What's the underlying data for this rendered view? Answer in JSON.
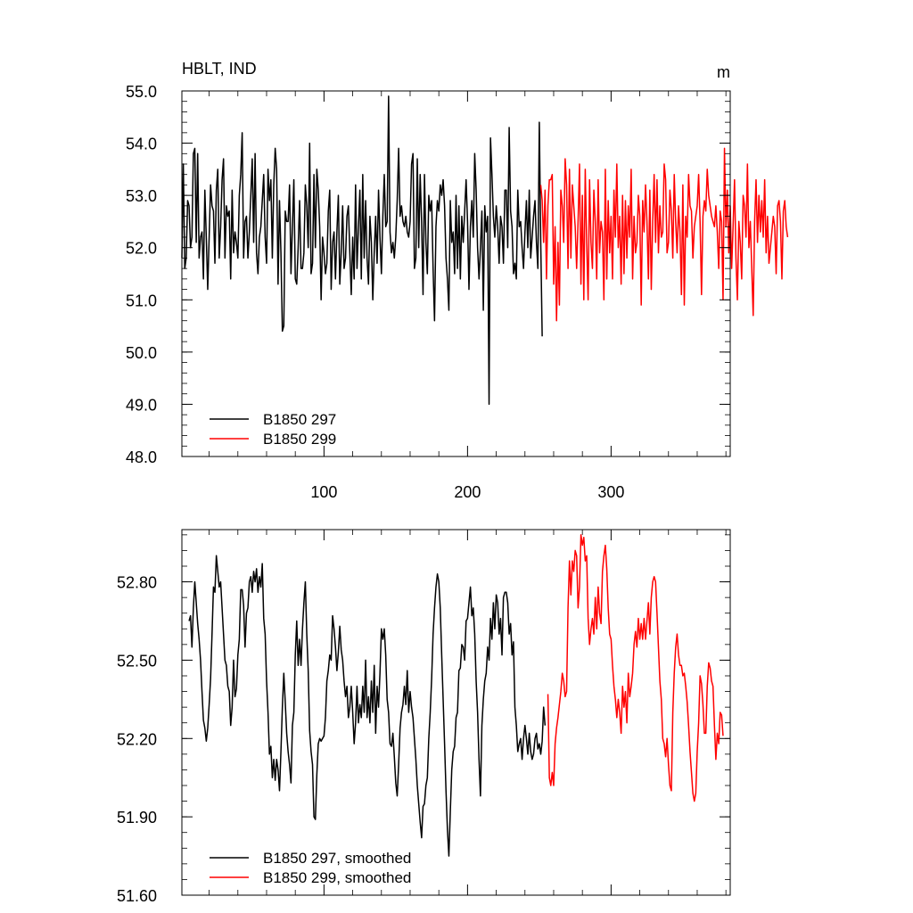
{
  "chart_data": [
    {
      "type": "line",
      "title": "HBLT, IND",
      "units": "m",
      "xlabel": "",
      "ylabel": "",
      "xlim": [
        1,
        383
      ],
      "ylim": [
        48.0,
        55.0
      ],
      "x_ticks": [
        100,
        200,
        300
      ],
      "x_tick_labels": [
        "100",
        "200",
        "300"
      ],
      "y_ticks": [
        48.0,
        49.0,
        50.0,
        51.0,
        52.0,
        53.0,
        54.0,
        55.0
      ],
      "y_tick_labels": [
        "48.0",
        "49.0",
        "50.0",
        "51.0",
        "52.0",
        "53.0",
        "54.0",
        "55.0"
      ],
      "grid": false,
      "legend_position": "bottom-left",
      "series": [
        {
          "name": "B1850 297",
          "color": "#000000",
          "x_start": 1,
          "values": [
            51.8,
            53.6,
            51.6,
            51.8,
            52.9,
            52.8,
            52.0,
            52.2,
            53.8,
            53.9,
            52.1,
            53.8,
            51.8,
            52.2,
            52.3,
            51.4,
            53.1,
            52.2,
            51.2,
            52.2,
            53.2,
            52.8,
            52.7,
            51.7,
            53.1,
            53.5,
            51.8,
            52.4,
            53.3,
            53.7,
            51.8,
            52.8,
            52.6,
            52.7,
            51.4,
            53.1,
            51.9,
            52.3,
            52.1,
            51.8,
            53.0,
            53.4,
            54.2,
            51.8,
            52.5,
            52.6,
            51.8,
            52.3,
            53.0,
            53.7,
            52.1,
            53.8,
            51.9,
            51.5,
            52.2,
            52.4,
            52.9,
            53.4,
            52.2,
            51.7,
            53.5,
            52.9,
            53.3,
            51.8,
            53.2,
            53.9,
            53.5,
            51.3,
            52.9,
            51.9,
            50.4,
            50.5,
            52.7,
            52.5,
            52.5,
            53.2,
            51.5,
            52.4,
            53.3,
            51.4,
            51.3,
            52.0,
            52.9,
            51.6,
            51.6,
            51.9,
            53.2,
            52.8,
            52.0,
            54.0,
            51.5,
            51.7,
            53.4,
            52.0,
            53.5,
            53.1,
            52.4,
            51.0,
            52.2,
            51.9,
            51.5,
            51.7,
            52.7,
            53.1,
            51.2,
            52.1,
            52.3,
            51.4,
            52.3,
            53.0,
            51.3,
            51.9,
            52.8,
            51.6,
            51.8,
            52.6,
            52.8,
            51.9,
            51.1,
            52.2,
            51.4,
            53.2,
            51.6,
            52.4,
            53.1,
            51.4,
            53.4,
            51.8,
            52.9,
            51.8,
            51.3,
            52.6,
            52.1,
            51.0,
            51.9,
            52.6,
            51.7,
            53.1,
            52.2,
            51.5,
            52.6,
            53.4,
            52.4,
            52.5,
            54.9,
            52.3,
            51.9,
            52.1,
            51.8,
            52.2,
            52.9,
            53.9,
            52.6,
            52.8,
            52.5,
            52.4,
            52.6,
            52.3,
            52.2,
            52.5,
            53.6,
            53.8,
            51.6,
            51.8,
            53.7,
            52.0,
            53.4,
            52.5,
            51.1,
            53.4,
            52.1,
            51.5,
            53.0,
            52.7,
            52.9,
            51.6,
            50.6,
            52.4,
            52.9,
            52.7,
            53.2,
            53.0,
            53.3,
            52.8,
            51.8,
            51.4,
            50.8,
            52.9,
            52.1,
            52.3,
            51.5,
            53.0,
            51.6,
            52.8,
            51.4,
            52.6,
            52.1,
            52.7,
            53.3,
            52.5,
            51.2,
            52.4,
            52.9,
            52.2,
            53.8,
            53.1,
            52.0,
            51.4,
            52.0,
            52.7,
            50.8,
            52.8,
            52.3,
            52.6,
            49.0,
            54.1,
            53.4,
            52.6,
            52.2,
            52.8,
            52.4,
            51.7,
            52.6,
            52.4,
            51.7,
            53.1,
            53.1,
            52.0,
            54.3,
            52.7,
            52.4,
            51.5,
            51.7,
            51.4,
            53.1,
            52.4,
            52.5,
            52.0,
            51.6,
            52.3,
            52.9,
            52.0,
            53.1,
            51.8,
            52.2,
            52.6,
            52.9,
            52.1,
            51.6,
            54.4,
            52.1,
            50.3
          ]
        },
        {
          "name": "B1850 299",
          "color": "#ff0000",
          "x_start": 251,
          "values": [
            53.2,
            52.9,
            52.1,
            53.1,
            51.4,
            52.8,
            53.3,
            53.3,
            53.4,
            51.3,
            52.4,
            50.6,
            52.1,
            50.9,
            53.1,
            52.8,
            52.1,
            53.7,
            53.2,
            51.6,
            53.5,
            51.8,
            53.2,
            52.8,
            52.4,
            51.6,
            52.5,
            53.6,
            51.3,
            53.0,
            51.0,
            53.5,
            52.1,
            51.0,
            53.3,
            52.1,
            51.6,
            53.1,
            52.5,
            51.4,
            53.3,
            51.9,
            52.5,
            52.3,
            51.0,
            53.5,
            51.4,
            52.9,
            51.9,
            52.6,
            51.4,
            53.1,
            52.2,
            53.6,
            52.0,
            52.6,
            51.3,
            53.0,
            51.5,
            52.9,
            51.8,
            52.8,
            52.2,
            53.5,
            51.4,
            52.6,
            51.9,
            52.1,
            53.0,
            52.6,
            50.9,
            52.9,
            52.3,
            53.2,
            52.5,
            51.4,
            53.1,
            51.2,
            52.5,
            53.4,
            52.1,
            53.3,
            51.9,
            52.8,
            52.2,
            52.3,
            53.6,
            53.3,
            51.9,
            52.1,
            53.1,
            52.7,
            51.8,
            53.4,
            52.5,
            51.9,
            52.8,
            52.3,
            51.1,
            53.2,
            50.9,
            52.6,
            52.2,
            53.4,
            52.8,
            52.7,
            51.8,
            52.4,
            52.6,
            52.8,
            53.4,
            52.5,
            51.1,
            52.6,
            52.9,
            52.7,
            53.5,
            53.0,
            52.8,
            52.6,
            52.5,
            52.4,
            52.8,
            52.3,
            51.6,
            52.7,
            52.5,
            51.0,
            53.9,
            52.4,
            53.1,
            51.9,
            52.8,
            51.6,
            52.4,
            53.3,
            51.8,
            51.0,
            52.5,
            52.1,
            51.4,
            53.0,
            52.8,
            52.2,
            53.6,
            52.0,
            52.5,
            51.6,
            50.7,
            52.5,
            53.3,
            52.1,
            53.0,
            52.3,
            52.9,
            52.2,
            53.3,
            51.9,
            52.6,
            51.7,
            52.0,
            52.3,
            52.6,
            52.4,
            51.5,
            52.8,
            52.9,
            52.5,
            51.4,
            52.7,
            52.9,
            52.4,
            52.2
          ]
        }
      ]
    },
    {
      "type": "line",
      "title": "",
      "xlabel": "",
      "ylabel": "",
      "xlim": [
        1,
        383
      ],
      "ylim": [
        51.6,
        53.0
      ],
      "x_ticks": [
        100,
        200,
        300
      ],
      "x_tick_labels": [],
      "y_ticks": [
        51.6,
        51.9,
        52.2,
        52.5,
        52.8
      ],
      "y_tick_labels": [
        "51.60",
        "51.90",
        "52.20",
        "52.50",
        "52.80"
      ],
      "grid": false,
      "legend_position": "bottom-left",
      "series": [
        {
          "name": "B1850 297, smoothed",
          "color": "#000000",
          "x_start": 6,
          "values": [
            52.65,
            52.67,
            52.55,
            52.7,
            52.8,
            52.72,
            52.64,
            52.58,
            52.5,
            52.38,
            52.27,
            52.24,
            52.19,
            52.24,
            52.33,
            52.43,
            52.6,
            52.78,
            52.76,
            52.9,
            52.84,
            52.78,
            52.8,
            52.7,
            52.6,
            52.5,
            52.48,
            52.4,
            52.38,
            52.25,
            52.32,
            52.5,
            52.36,
            52.39,
            52.52,
            52.58,
            52.77,
            52.77,
            52.71,
            52.55,
            52.68,
            52.7,
            52.8,
            52.82,
            52.76,
            52.84,
            52.8,
            52.85,
            52.76,
            52.82,
            52.78,
            52.87,
            52.66,
            52.6,
            52.42,
            52.3,
            52.14,
            52.17,
            52.05,
            52.12,
            52.04,
            52.12,
            52.08,
            52.0,
            52.15,
            52.32,
            52.45,
            52.34,
            52.22,
            52.15,
            52.1,
            52.03,
            52.25,
            52.3,
            52.52,
            52.65,
            52.48,
            52.58,
            52.48,
            52.62,
            52.72,
            52.8,
            52.6,
            52.46,
            52.23,
            52.15,
            52.1,
            51.9,
            51.89,
            52.06,
            52.18,
            52.2,
            52.19,
            52.2,
            52.21,
            52.28,
            52.42,
            52.46,
            52.52,
            52.5,
            52.67,
            52.62,
            52.55,
            52.46,
            52.53,
            52.63,
            52.54,
            52.5,
            52.42,
            52.36,
            52.4,
            52.28,
            52.32,
            52.4,
            52.3,
            52.18,
            52.26,
            52.4,
            52.26,
            52.33,
            52.28,
            52.4,
            52.3,
            52.5,
            52.28,
            52.36,
            52.26,
            52.42,
            52.3,
            52.48,
            52.22,
            52.4,
            52.32,
            52.45,
            52.62,
            52.58,
            52.62,
            52.52,
            52.35,
            52.3,
            52.18,
            52.17,
            52.22,
            52.13,
            52.03,
            51.98,
            52.1,
            52.24,
            52.3,
            52.33,
            52.4,
            52.33,
            52.46,
            52.3,
            52.38,
            52.32,
            52.28,
            52.2,
            52.12,
            52.02,
            51.95,
            51.88,
            51.82,
            51.94,
            51.95,
            52.02,
            52.05,
            52.2,
            52.3,
            52.43,
            52.6,
            52.7,
            52.78,
            52.83,
            52.8,
            52.7,
            52.52,
            52.35,
            52.18,
            52.0,
            51.85,
            51.75,
            51.92,
            52.08,
            52.15,
            52.17,
            52.28,
            52.3,
            52.46,
            52.47,
            52.56,
            52.55,
            52.5,
            52.65,
            52.66,
            52.72,
            52.78,
            52.67,
            52.7,
            52.6,
            52.42,
            52.3,
            52.12,
            51.98,
            52.25,
            52.35,
            52.42,
            52.45,
            52.55,
            52.5,
            52.66,
            52.58,
            52.72,
            52.62,
            52.75,
            52.72,
            52.6,
            52.66,
            52.52,
            52.74,
            52.76,
            52.76,
            52.72,
            52.6,
            52.64,
            52.52,
            52.57,
            52.32,
            52.25,
            52.15,
            52.18,
            52.2,
            52.12,
            52.2,
            52.25,
            52.2,
            52.14,
            52.22,
            52.15,
            52.12,
            52.14,
            52.2,
            52.22,
            52.16,
            52.18,
            52.14,
            52.19,
            52.32,
            52.25
          ]
        },
        {
          "name": "B1850 299, smoothed",
          "color": "#ff0000",
          "x_start": 256,
          "values": [
            52.37,
            52.05,
            52.02,
            52.07,
            52.02,
            52.18,
            52.24,
            52.28,
            52.33,
            52.38,
            52.45,
            52.42,
            52.36,
            52.38,
            52.7,
            52.88,
            52.75,
            52.88,
            52.84,
            52.92,
            52.9,
            52.7,
            52.78,
            52.98,
            52.94,
            52.97,
            52.88,
            52.9,
            52.66,
            52.56,
            52.62,
            52.66,
            52.6,
            52.74,
            52.62,
            52.78,
            52.68,
            52.64,
            52.84,
            52.9,
            52.94,
            52.85,
            52.7,
            52.6,
            52.58,
            52.48,
            52.4,
            52.35,
            52.28,
            52.35,
            52.3,
            52.22,
            52.4,
            52.32,
            52.38,
            52.26,
            52.45,
            52.36,
            52.4,
            52.45,
            52.56,
            52.61,
            52.55,
            52.66,
            52.58,
            52.64,
            52.58,
            52.66,
            52.58,
            52.65,
            52.72,
            52.6,
            52.74,
            52.8,
            52.82,
            52.8,
            52.68,
            52.55,
            52.42,
            52.35,
            52.2,
            52.18,
            52.13,
            52.2,
            52.1,
            52.02,
            52.0,
            52.3,
            52.45,
            52.55,
            52.6,
            52.52,
            52.48,
            52.48,
            52.44,
            52.45,
            52.4,
            52.34,
            52.25,
            52.15,
            52.07,
            51.99,
            51.96,
            51.99,
            52.15,
            52.26,
            52.44,
            52.41,
            52.33,
            52.22,
            52.22,
            52.4,
            52.49,
            52.47,
            52.42,
            52.4,
            52.25,
            52.12,
            52.22,
            52.18,
            52.3,
            52.29,
            52.21
          ]
        }
      ]
    }
  ]
}
